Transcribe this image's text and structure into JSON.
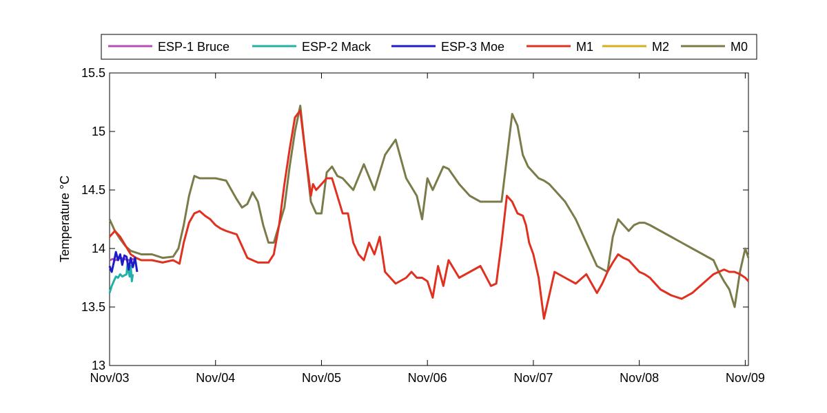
{
  "chart_data": {
    "type": "line",
    "ylabel": "Temperature °C",
    "xlabel": "",
    "title": "",
    "xlim": [
      0,
      6.03
    ],
    "ylim": [
      13,
      15.5
    ],
    "legend_position": "top",
    "x_ticks": [
      {
        "value": 0,
        "label": "Nov/03"
      },
      {
        "value": 1,
        "label": "Nov/04"
      },
      {
        "value": 2,
        "label": "Nov/05"
      },
      {
        "value": 3,
        "label": "Nov/06"
      },
      {
        "value": 4,
        "label": "Nov/07"
      },
      {
        "value": 5,
        "label": "Nov/08"
      },
      {
        "value": 6,
        "label": "Nov/09"
      }
    ],
    "y_ticks": [
      {
        "value": 13,
        "label": "13"
      },
      {
        "value": 13.5,
        "label": "13.5"
      },
      {
        "value": 14,
        "label": "14"
      },
      {
        "value": 14.5,
        "label": "14.5"
      },
      {
        "value": 15,
        "label": "15"
      },
      {
        "value": 15.5,
        "label": "15.5"
      }
    ],
    "series": [
      {
        "name": "ESP-1 Bruce",
        "color": "#b44fb4",
        "x": [
          0.0,
          0.03,
          0.06,
          0.1,
          0.14,
          0.18,
          0.22,
          0.25
        ],
        "y": [
          13.9,
          13.91,
          13.9,
          13.92,
          13.91,
          13.9,
          13.91,
          13.9
        ]
      },
      {
        "name": "ESP-2 Mack",
        "color": "#20b2aa",
        "x": [
          0.0,
          0.02,
          0.04,
          0.06,
          0.08,
          0.1,
          0.12,
          0.14,
          0.16,
          0.17,
          0.18,
          0.19,
          0.2,
          0.21,
          0.22
        ],
        "y": [
          13.62,
          13.68,
          13.72,
          13.76,
          13.75,
          13.78,
          13.76,
          13.77,
          13.78,
          13.87,
          13.8,
          13.76,
          13.85,
          13.72,
          13.78
        ]
      },
      {
        "name": "ESP-3 Moe",
        "color": "#1c1cc8",
        "x": [
          0.0,
          0.02,
          0.04,
          0.06,
          0.08,
          0.1,
          0.12,
          0.14,
          0.16,
          0.18,
          0.2,
          0.22,
          0.24,
          0.26
        ],
        "y": [
          13.85,
          13.8,
          13.88,
          13.97,
          13.9,
          13.95,
          13.86,
          13.94,
          13.93,
          13.82,
          13.92,
          13.84,
          13.92,
          13.8
        ]
      },
      {
        "name": "M1",
        "color": "#e03020",
        "x": [
          0.0,
          0.05,
          0.1,
          0.2,
          0.25,
          0.3,
          0.4,
          0.5,
          0.6,
          0.66,
          0.7,
          0.75,
          0.8,
          0.85,
          0.9,
          0.95,
          1.0,
          1.05,
          1.1,
          1.2,
          1.3,
          1.4,
          1.5,
          1.55,
          1.6,
          1.65,
          1.7,
          1.75,
          1.8,
          1.85,
          1.88,
          1.9,
          1.92,
          1.95,
          2.0,
          2.05,
          2.1,
          2.15,
          2.2,
          2.25,
          2.3,
          2.35,
          2.4,
          2.45,
          2.5,
          2.55,
          2.6,
          2.7,
          2.8,
          2.85,
          2.9,
          2.95,
          3.0,
          3.05,
          3.1,
          3.15,
          3.2,
          3.3,
          3.4,
          3.5,
          3.6,
          3.65,
          3.7,
          3.75,
          3.8,
          3.85,
          3.9,
          3.93,
          3.96,
          4.0,
          4.05,
          4.1,
          4.2,
          4.3,
          4.4,
          4.5,
          4.6,
          4.65,
          4.7,
          4.75,
          4.8,
          4.85,
          4.9,
          4.95,
          5.0,
          5.05,
          5.1,
          5.2,
          5.3,
          5.4,
          5.5,
          5.6,
          5.7,
          5.75,
          5.8,
          5.85,
          5.9,
          5.95,
          6.0,
          6.03
        ],
        "y": [
          14.1,
          14.15,
          14.1,
          13.95,
          13.92,
          13.9,
          13.9,
          13.88,
          13.9,
          13.87,
          14.05,
          14.22,
          14.3,
          14.32,
          14.28,
          14.25,
          14.2,
          14.17,
          14.15,
          14.12,
          13.92,
          13.88,
          13.88,
          13.95,
          14.2,
          14.55,
          14.85,
          15.12,
          15.18,
          14.8,
          14.6,
          14.45,
          14.55,
          14.5,
          14.55,
          14.6,
          14.6,
          14.45,
          14.3,
          14.3,
          14.05,
          13.95,
          13.9,
          14.05,
          13.95,
          14.1,
          13.8,
          13.7,
          13.75,
          13.8,
          13.75,
          13.75,
          13.72,
          13.58,
          13.85,
          13.68,
          13.9,
          13.75,
          13.8,
          13.85,
          13.68,
          13.7,
          14.05,
          14.45,
          14.4,
          14.3,
          14.28,
          14.2,
          14.05,
          13.95,
          13.75,
          13.4,
          13.8,
          13.75,
          13.7,
          13.78,
          13.62,
          13.7,
          13.8,
          13.88,
          13.95,
          13.92,
          13.9,
          13.85,
          13.8,
          13.78,
          13.75,
          13.65,
          13.6,
          13.57,
          13.62,
          13.7,
          13.78,
          13.8,
          13.82,
          13.8,
          13.8,
          13.78,
          13.75,
          13.72
        ]
      },
      {
        "name": "M2",
        "color": "#d4b020",
        "x": [],
        "y": []
      },
      {
        "name": "M0",
        "color": "#7b7b4a",
        "x": [
          0.0,
          0.05,
          0.1,
          0.15,
          0.2,
          0.3,
          0.4,
          0.5,
          0.6,
          0.65,
          0.7,
          0.75,
          0.8,
          0.85,
          0.9,
          1.0,
          1.1,
          1.2,
          1.25,
          1.3,
          1.35,
          1.4,
          1.45,
          1.5,
          1.55,
          1.6,
          1.65,
          1.7,
          1.75,
          1.8,
          1.85,
          1.9,
          1.95,
          2.0,
          2.05,
          2.1,
          2.15,
          2.2,
          2.3,
          2.4,
          2.5,
          2.6,
          2.7,
          2.8,
          2.9,
          2.95,
          3.0,
          3.05,
          3.1,
          3.15,
          3.2,
          3.3,
          3.4,
          3.5,
          3.6,
          3.7,
          3.8,
          3.85,
          3.9,
          3.95,
          4.0,
          4.05,
          4.1,
          4.15,
          4.2,
          4.3,
          4.4,
          4.5,
          4.6,
          4.7,
          4.75,
          4.8,
          4.85,
          4.9,
          4.95,
          5.0,
          5.05,
          5.1,
          5.2,
          5.3,
          5.4,
          5.5,
          5.6,
          5.7,
          5.75,
          5.8,
          5.85,
          5.9,
          5.95,
          6.0,
          6.03
        ],
        "y": [
          14.25,
          14.15,
          14.08,
          14.02,
          13.98,
          13.95,
          13.95,
          13.92,
          13.93,
          14.0,
          14.2,
          14.45,
          14.62,
          14.6,
          14.6,
          14.6,
          14.58,
          14.42,
          14.35,
          14.38,
          14.48,
          14.4,
          14.2,
          14.05,
          14.05,
          14.2,
          14.35,
          14.7,
          15.0,
          15.22,
          14.8,
          14.4,
          14.3,
          14.3,
          14.65,
          14.7,
          14.62,
          14.6,
          14.5,
          14.72,
          14.5,
          14.8,
          14.93,
          14.6,
          14.45,
          14.25,
          14.6,
          14.5,
          14.6,
          14.7,
          14.68,
          14.55,
          14.45,
          14.4,
          14.4,
          14.4,
          15.15,
          15.05,
          14.8,
          14.7,
          14.65,
          14.6,
          14.58,
          14.55,
          14.5,
          14.4,
          14.25,
          14.05,
          13.85,
          13.8,
          14.1,
          14.25,
          14.2,
          14.15,
          14.2,
          14.22,
          14.22,
          14.2,
          14.15,
          14.1,
          14.05,
          14.0,
          13.95,
          13.9,
          13.8,
          13.72,
          13.65,
          13.5,
          13.8,
          14.0,
          13.92
        ]
      }
    ]
  }
}
